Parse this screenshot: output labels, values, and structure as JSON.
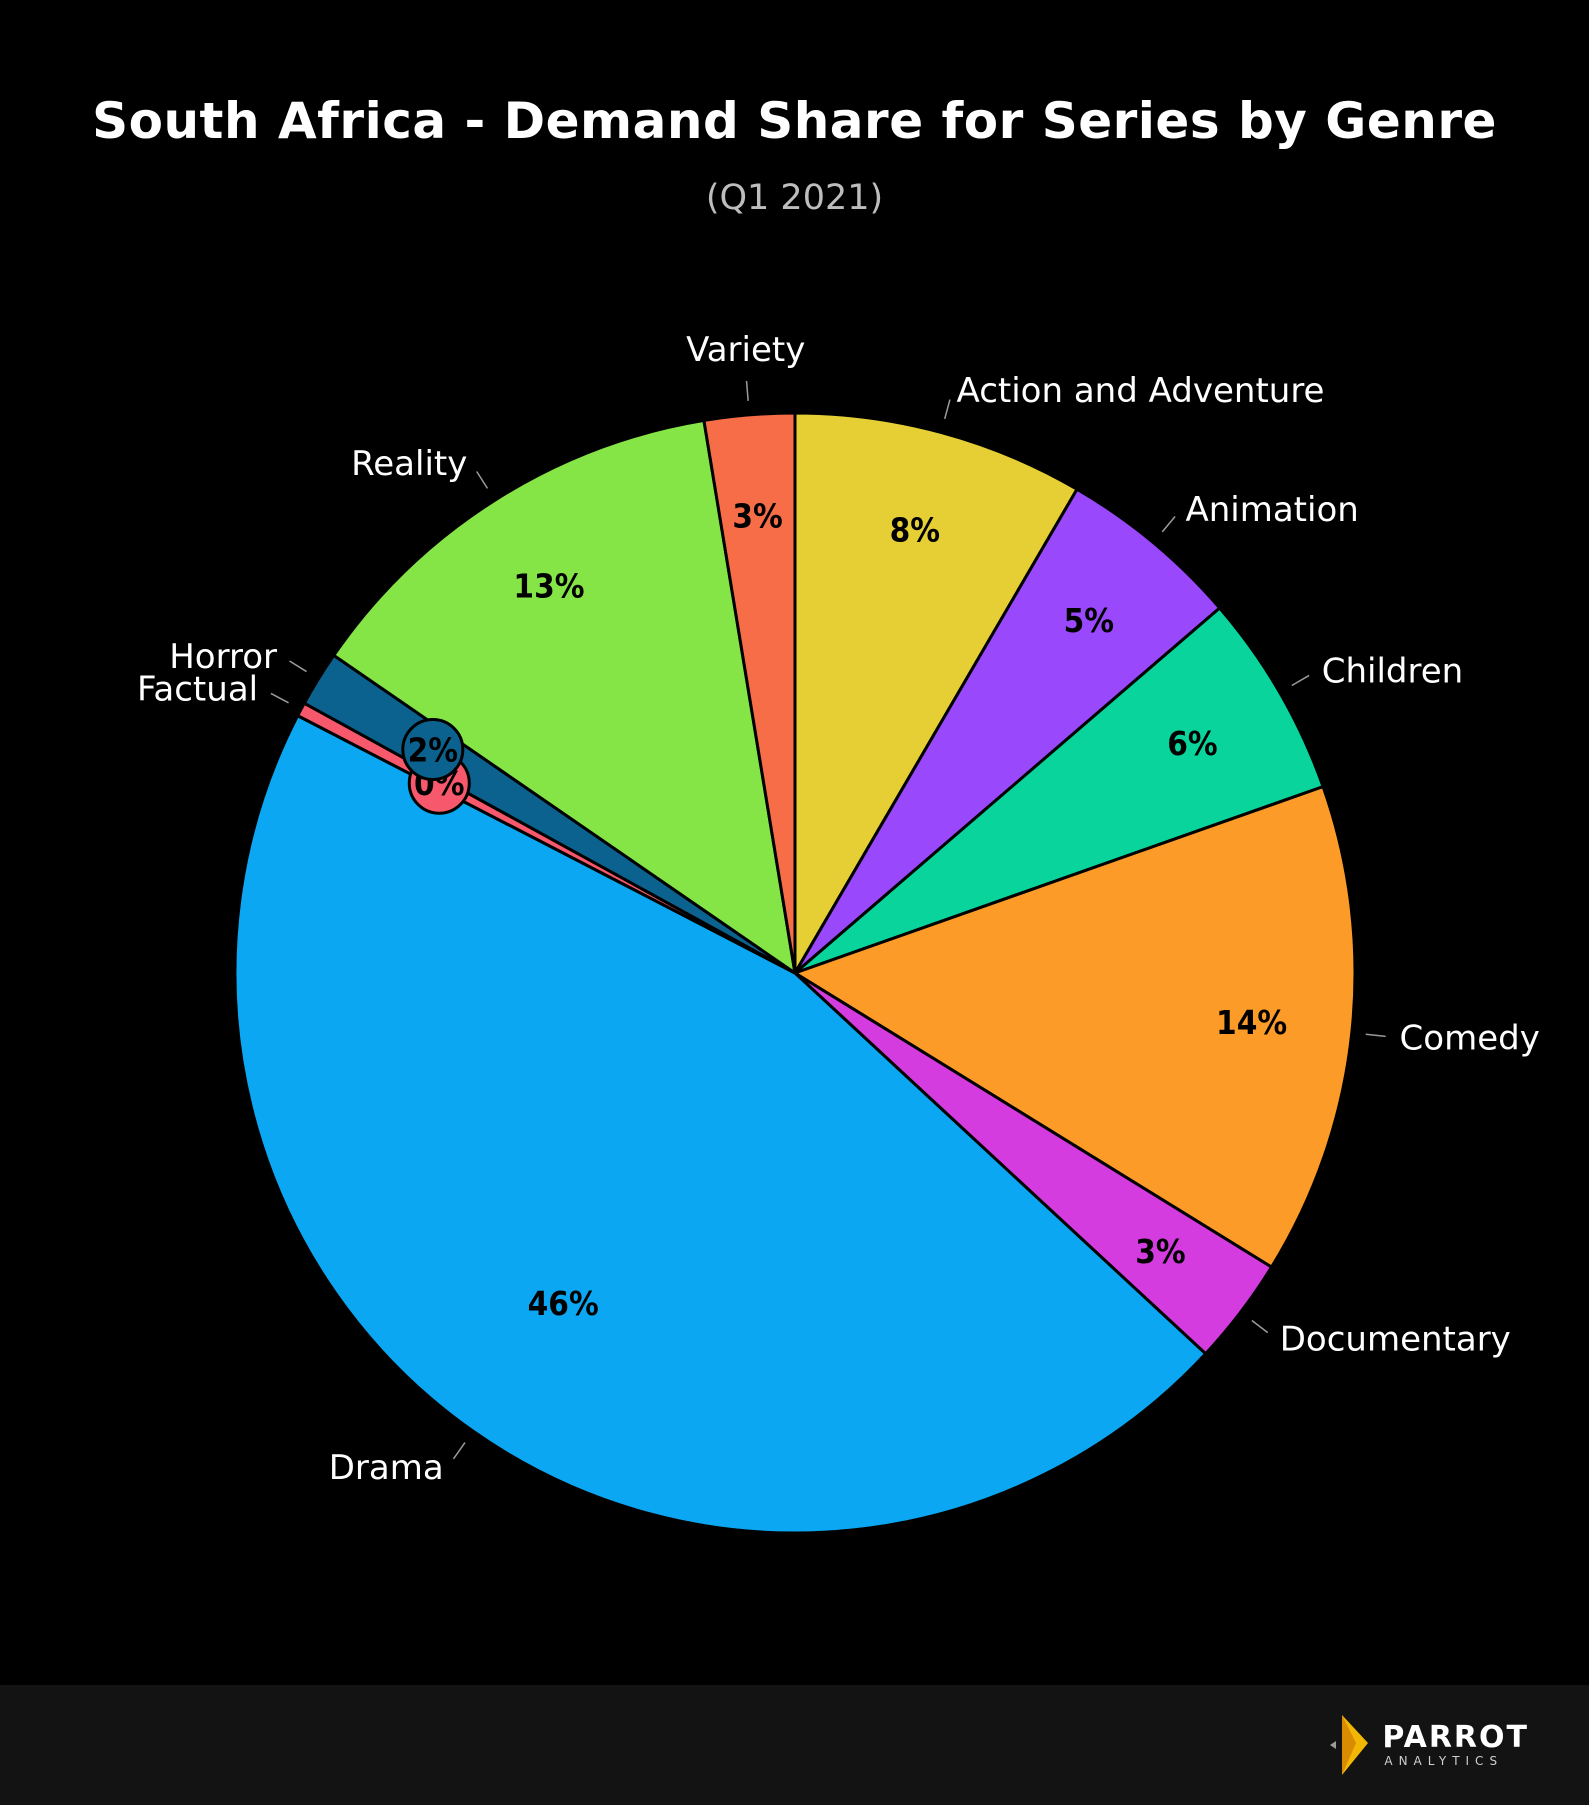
{
  "chart_data": {
    "type": "pie",
    "title": "South Africa - Demand Share for Series by Genre",
    "subtitle": "(Q1 2021)",
    "slices": [
      {
        "label": "Action and Adventure",
        "value": 8.4,
        "display": "8%",
        "color": "#e5cf34"
      },
      {
        "label": "Animation",
        "value": 5.3,
        "display": "5%",
        "color": "#9a48fc"
      },
      {
        "label": "Children",
        "value": 5.9,
        "display": "6%",
        "color": "#08d49c"
      },
      {
        "label": "Comedy",
        "value": 14.2,
        "display": "14%",
        "color": "#fc9b28"
      },
      {
        "label": "Documentary",
        "value": 3.1,
        "display": "3%",
        "color": "#d53ce0"
      },
      {
        "label": "Drama",
        "value": 45.7,
        "display": "46%",
        "color": "#0ba7f2"
      },
      {
        "label": "Factual",
        "value": 0.4,
        "display": "0%",
        "color": "#f7586c"
      },
      {
        "label": "Horror",
        "value": 1.6,
        "display": "2%",
        "color": "#0b628f"
      },
      {
        "label": "Reality",
        "value": 12.8,
        "display": "13%",
        "color": "#85e546"
      },
      {
        "label": "Variety",
        "value": 2.6,
        "display": "3%",
        "color": "#f76d47"
      }
    ]
  },
  "footer": {
    "brand_name": "PARROT",
    "brand_sub": "ANALYTICS",
    "background": "#131313"
  }
}
